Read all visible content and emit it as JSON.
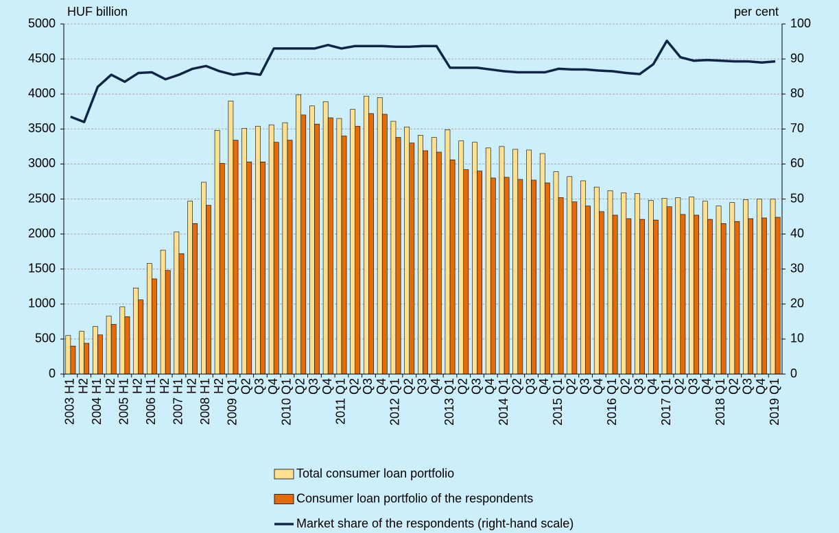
{
  "chart_data": {
    "type": "bar-line",
    "y_label": "HUF billion",
    "y2_label": "per cent",
    "categories": [
      "2003 H1",
      "H2",
      "2004 H1",
      "H2",
      "2005 H1",
      "H2",
      "2006 H1",
      "H2",
      "2007 H1",
      "H2",
      "2008 H1",
      "H2",
      "2009 Q1",
      "Q2",
      "Q3",
      "Q4",
      "2010 Q1",
      "Q2",
      "Q3",
      "Q4",
      "2011 Q1",
      "Q2",
      "Q3",
      "Q4",
      "2012 Q1",
      "Q2",
      "Q3",
      "Q4",
      "2013 Q1",
      "Q2",
      "Q3",
      "Q4",
      "2014 Q1",
      "Q2",
      "Q3",
      "Q4",
      "2015 Q1",
      "Q2",
      "Q3",
      "Q4",
      "2016 Q1",
      "Q2",
      "Q3",
      "Q4",
      "2017 Q1",
      "Q2",
      "Q3",
      "Q4",
      "2018 Q1",
      "Q2",
      "Q3",
      "Q4",
      "2019 Q1"
    ],
    "series": [
      {
        "name": "Total consumer loan portfolio",
        "type": "bar",
        "color": "#ffe08f",
        "values": [
          550,
          610,
          680,
          830,
          960,
          1230,
          1580,
          1770,
          2030,
          2470,
          2740,
          3480,
          3900,
          3510,
          3540,
          3560,
          3590,
          3990,
          3830,
          3890,
          3650,
          3780,
          3970,
          3950,
          3610,
          3530,
          3410,
          3380,
          3490,
          3330,
          3310,
          3230,
          3250,
          3210,
          3200,
          3150,
          2890,
          2820,
          2760,
          2670,
          2620,
          2590,
          2580,
          2480,
          2510,
          2520,
          2530,
          2470,
          2400,
          2450,
          2490,
          2500,
          2500
        ]
      },
      {
        "name": "Consumer loan portfolio of the respondents",
        "type": "bar",
        "color": "#e36c09",
        "values": [
          400,
          440,
          560,
          710,
          820,
          1060,
          1360,
          1480,
          1720,
          2150,
          2410,
          3010,
          3340,
          3030,
          3030,
          3310,
          3340,
          3700,
          3570,
          3660,
          3400,
          3540,
          3720,
          3710,
          3380,
          3300,
          3190,
          3170,
          3060,
          2920,
          2900,
          2800,
          2810,
          2780,
          2770,
          2730,
          2520,
          2460,
          2400,
          2320,
          2270,
          2220,
          2210,
          2200,
          2390,
          2280,
          2270,
          2210,
          2150,
          2180,
          2220,
          2230,
          2240
        ]
      },
      {
        "name": "Market share of the respondents (right-hand scale)",
        "type": "line",
        "axis": "y2",
        "color": "#0f2547",
        "values": [
          73.5,
          72,
          82,
          85.5,
          83.5,
          86,
          86.2,
          84.2,
          85.5,
          87.2,
          88,
          86.5,
          85.5,
          86,
          85.5,
          93,
          93,
          93,
          93,
          94,
          93,
          93.7,
          93.7,
          93.7,
          93.5,
          93.5,
          93.7,
          93.7,
          87.5,
          87.5,
          87.5,
          87,
          86.5,
          86.2,
          86.2,
          86.2,
          87.2,
          87,
          87,
          86.7,
          86.5,
          86,
          85.7,
          88.5,
          95.2,
          90.5,
          89.5,
          89.7,
          89.5,
          89.3,
          89.3,
          89,
          89.3
        ]
      }
    ],
    "ylim": [
      0,
      5000
    ],
    "yticks": [
      0,
      500,
      1000,
      1500,
      2000,
      2500,
      3000,
      3500,
      4000,
      4500,
      5000
    ],
    "y2lim": [
      0,
      100
    ],
    "y2ticks": [
      0,
      10,
      20,
      30,
      40,
      50,
      60,
      70,
      80,
      90,
      100
    ],
    "grid": true
  }
}
